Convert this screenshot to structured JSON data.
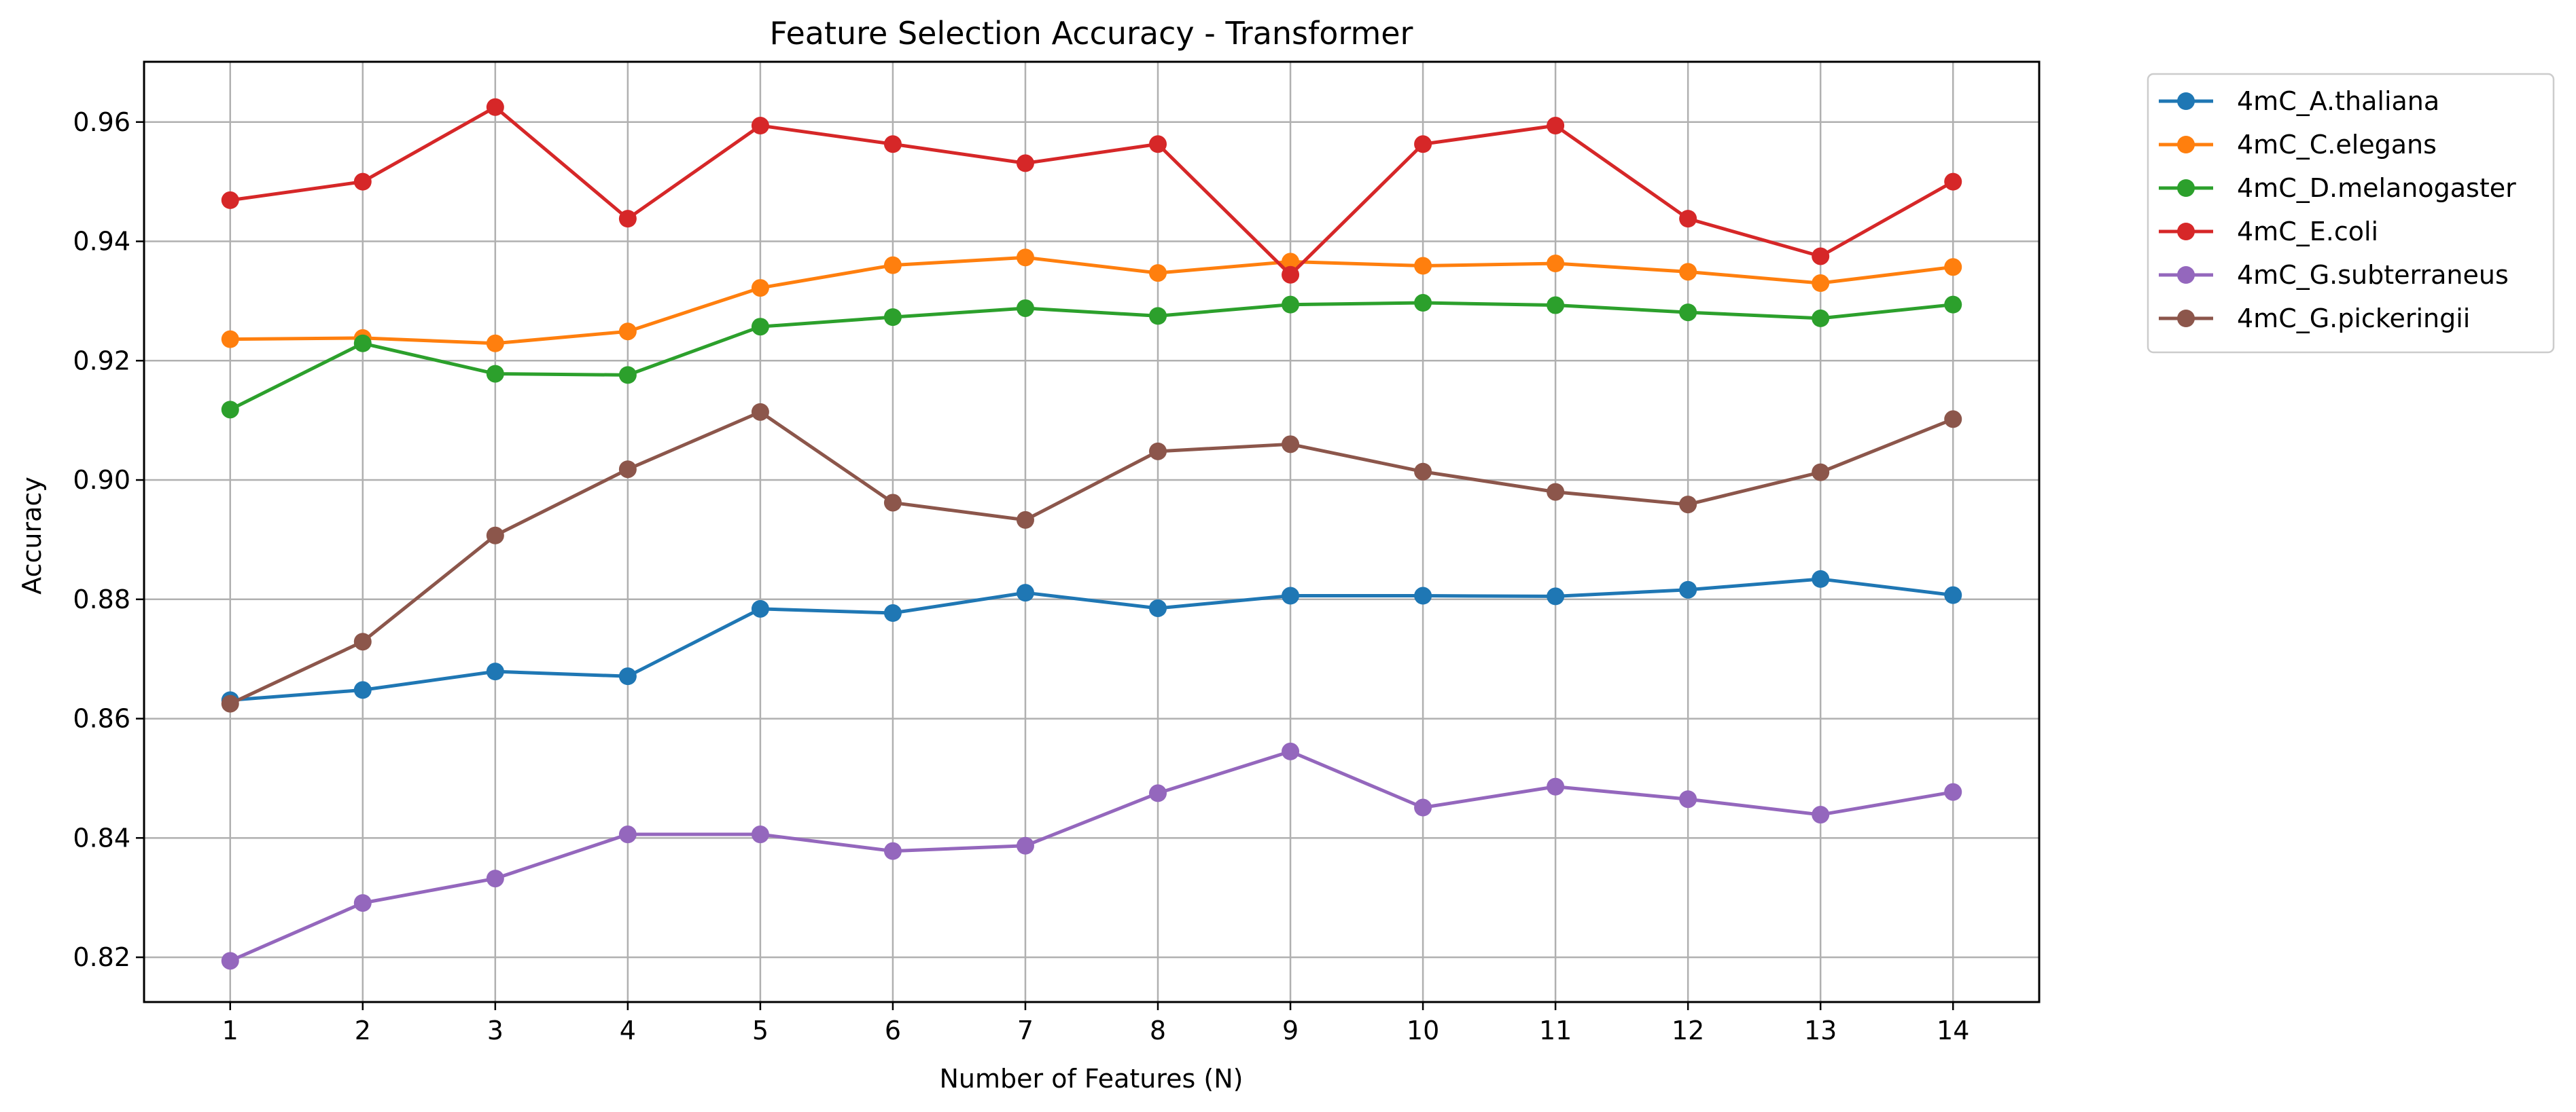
{
  "chart_data": {
    "type": "line",
    "title": "Feature Selection Accuracy - Transformer",
    "xlabel": "Number of Features (N)",
    "ylabel": "Accuracy",
    "x": [
      1,
      2,
      3,
      4,
      5,
      6,
      7,
      8,
      9,
      10,
      11,
      12,
      13,
      14
    ],
    "xlim": [
      0.35,
      14.65
    ],
    "ylim": [
      0.8125,
      0.9701
    ],
    "xticks": [
      "1",
      "2",
      "3",
      "4",
      "5",
      "6",
      "7",
      "8",
      "9",
      "10",
      "11",
      "12",
      "13",
      "14"
    ],
    "yticks": [
      "0.82",
      "0.84",
      "0.86",
      "0.88",
      "0.90",
      "0.92",
      "0.94",
      "0.96"
    ],
    "grid": true,
    "legend_position": "outside upper right",
    "series": [
      {
        "name": "4mC_A.thaliana",
        "color": "#1f77b4",
        "values": [
          0.8631,
          0.8648,
          0.8679,
          0.8671,
          0.8784,
          0.8777,
          0.8811,
          0.8785,
          0.8806,
          0.8806,
          0.8805,
          0.8816,
          0.8834,
          0.8807
        ]
      },
      {
        "name": "4mC_C.elegans",
        "color": "#ff7f0e",
        "values": [
          0.9236,
          0.9238,
          0.9229,
          0.9249,
          0.9322,
          0.936,
          0.9373,
          0.9347,
          0.9366,
          0.9359,
          0.9363,
          0.9349,
          0.933,
          0.9357
        ]
      },
      {
        "name": "4mC_D.melanogaster",
        "color": "#2ca02c",
        "values": [
          0.9118,
          0.9229,
          0.9178,
          0.9176,
          0.9257,
          0.9273,
          0.9288,
          0.9275,
          0.9294,
          0.9297,
          0.9293,
          0.9281,
          0.9271,
          0.9294
        ]
      },
      {
        "name": "4mC_E.coli",
        "color": "#d62728",
        "values": [
          0.9469,
          0.95,
          0.9625,
          0.9438,
          0.9594,
          0.9563,
          0.9531,
          0.9563,
          0.9344,
          0.9563,
          0.9594,
          0.9438,
          0.9375,
          0.95
        ]
      },
      {
        "name": "4mC_G.subterraneus",
        "color": "#9467bd",
        "values": [
          0.8194,
          0.8291,
          0.8332,
          0.8406,
          0.8406,
          0.8378,
          0.8387,
          0.8475,
          0.8545,
          0.8451,
          0.8486,
          0.8465,
          0.8439,
          0.8477
        ]
      },
      {
        "name": "4mC_G.pickeringii",
        "color": "#8c564b",
        "values": [
          0.8625,
          0.8729,
          0.8907,
          0.9018,
          0.9114,
          0.8962,
          0.8933,
          0.9048,
          0.906,
          0.9014,
          0.898,
          0.8959,
          0.9013,
          0.9102
        ]
      }
    ]
  }
}
